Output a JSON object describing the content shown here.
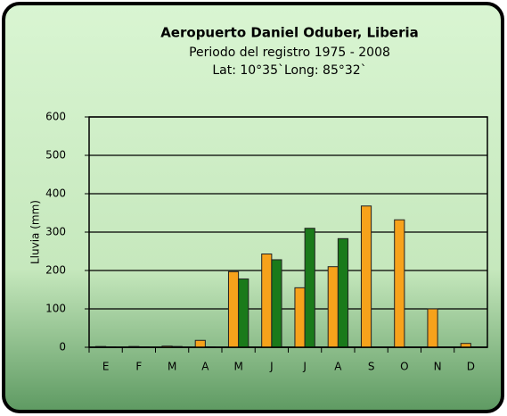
{
  "chart_data": {
    "type": "bar",
    "title": "Aeropuerto Daniel Oduber, Liberia",
    "subtitle": [
      "Periodo del registro  1975 - 2008",
      "Lat: 10°35`Long: 85°32`"
    ],
    "y_label": "Lluvia (mm)",
    "categories": [
      "E",
      "F",
      "M",
      "A",
      "M",
      "J",
      "J",
      "A",
      "S",
      "O",
      "N",
      "D"
    ],
    "series": [
      {
        "color": "#f7a21b",
        "values": [
          2,
          2,
          3,
          18,
          197,
          243,
          155,
          210,
          368,
          332,
          100,
          10
        ]
      },
      {
        "color": "#1a7a1a",
        "values": [
          1,
          1,
          2,
          1,
          178,
          228,
          310,
          283,
          null,
          null,
          null,
          null
        ]
      }
    ],
    "ylim": [
      0,
      600
    ],
    "yticks": [
      0,
      100,
      200,
      300,
      400,
      500,
      600
    ],
    "grid": true
  }
}
